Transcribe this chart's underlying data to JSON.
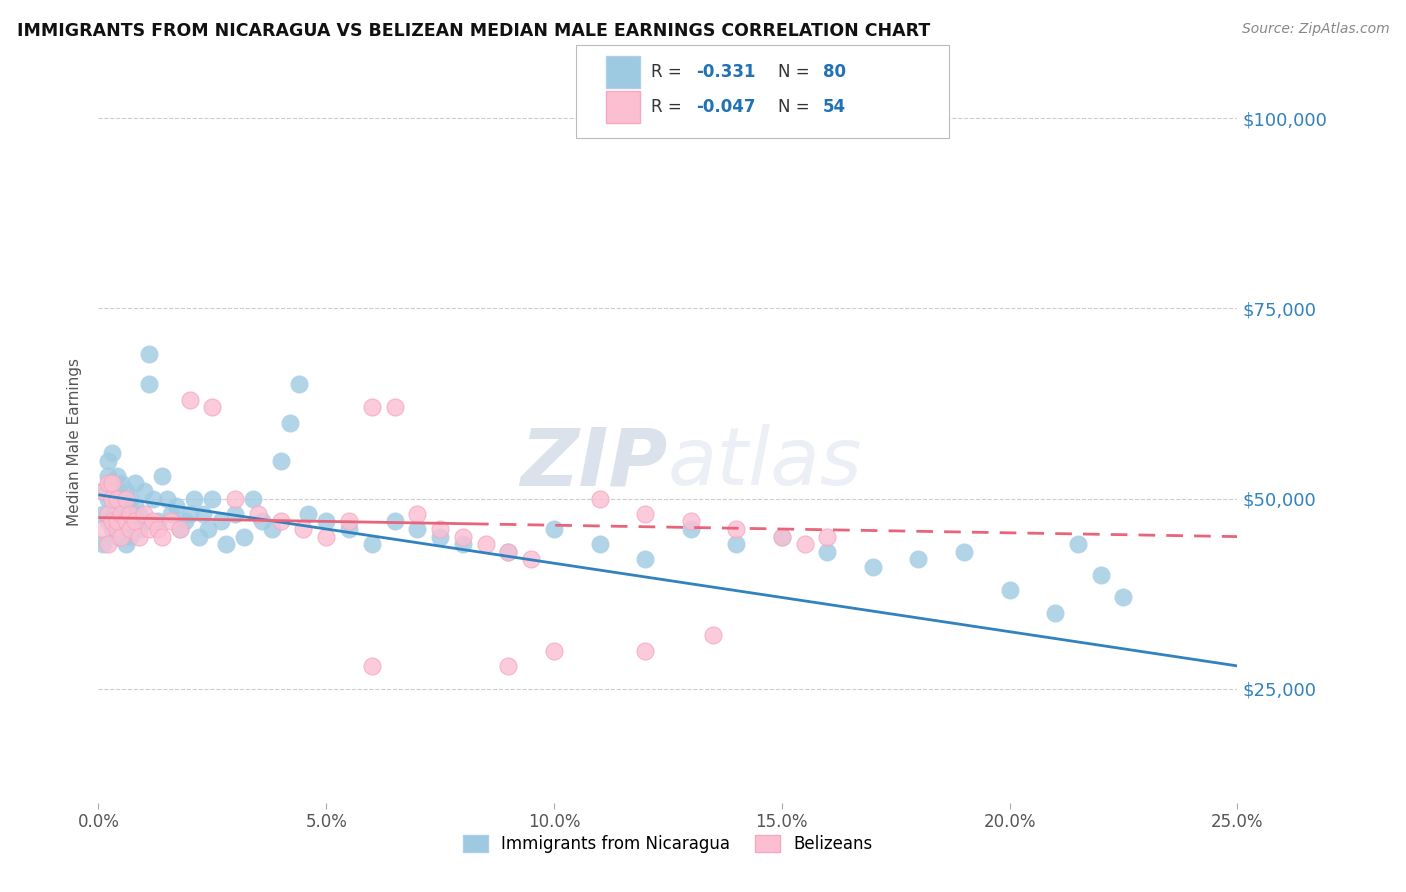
{
  "title": "IMMIGRANTS FROM NICARAGUA VS BELIZEAN MEDIAN MALE EARNINGS CORRELATION CHART",
  "source": "Source: ZipAtlas.com",
  "ylabel": "Median Male Earnings",
  "x_min": 0.0,
  "x_max": 0.25,
  "y_min": 10000,
  "y_max": 105000,
  "y_ticks": [
    25000,
    50000,
    75000,
    100000
  ],
  "y_tick_labels": [
    "$25,000",
    "$50,000",
    "$75,000",
    "$100,000"
  ],
  "x_tick_labels": [
    "0.0%",
    "5.0%",
    "10.0%",
    "15.0%",
    "20.0%",
    "25.0%"
  ],
  "x_ticks": [
    0.0,
    0.05,
    0.1,
    0.15,
    0.2,
    0.25
  ],
  "blue_color": "#9ecae1",
  "pink_color": "#fcbfd2",
  "blue_line_color": "#3182bd",
  "pink_line_color": "#e8647a",
  "watermark_zip": "ZIP",
  "watermark_atlas": "atlas",
  "legend_label1": "Immigrants from Nicaragua",
  "legend_label2": "Belizeans",
  "blue_scatter_x": [
    0.001,
    0.001,
    0.001,
    0.002,
    0.002,
    0.002,
    0.002,
    0.003,
    0.003,
    0.003,
    0.003,
    0.004,
    0.004,
    0.004,
    0.004,
    0.005,
    0.005,
    0.005,
    0.006,
    0.006,
    0.006,
    0.007,
    0.007,
    0.007,
    0.008,
    0.008,
    0.009,
    0.009,
    0.01,
    0.01,
    0.011,
    0.011,
    0.012,
    0.013,
    0.014,
    0.015,
    0.016,
    0.017,
    0.018,
    0.019,
    0.02,
    0.021,
    0.022,
    0.023,
    0.024,
    0.025,
    0.027,
    0.028,
    0.03,
    0.032,
    0.034,
    0.036,
    0.038,
    0.04,
    0.042,
    0.044,
    0.046,
    0.05,
    0.055,
    0.06,
    0.065,
    0.07,
    0.075,
    0.08,
    0.09,
    0.1,
    0.11,
    0.12,
    0.13,
    0.14,
    0.15,
    0.16,
    0.17,
    0.18,
    0.19,
    0.2,
    0.21,
    0.215,
    0.22,
    0.225
  ],
  "blue_scatter_y": [
    48000,
    51000,
    44000,
    50000,
    53000,
    47000,
    55000,
    52000,
    48000,
    56000,
    46000,
    50000,
    47000,
    53000,
    45000,
    52000,
    49000,
    46000,
    51000,
    48000,
    44000,
    50000,
    47000,
    45000,
    52000,
    49000,
    48000,
    46000,
    51000,
    47000,
    65000,
    69000,
    50000,
    47000,
    53000,
    50000,
    48000,
    49000,
    46000,
    47000,
    48000,
    50000,
    45000,
    48000,
    46000,
    50000,
    47000,
    44000,
    48000,
    45000,
    50000,
    47000,
    46000,
    55000,
    60000,
    65000,
    48000,
    47000,
    46000,
    44000,
    47000,
    46000,
    45000,
    44000,
    43000,
    46000,
    44000,
    42000,
    46000,
    44000,
    45000,
    43000,
    41000,
    42000,
    43000,
    38000,
    35000,
    44000,
    40000,
    37000
  ],
  "pink_scatter_x": [
    0.001,
    0.001,
    0.002,
    0.002,
    0.002,
    0.003,
    0.003,
    0.003,
    0.004,
    0.004,
    0.004,
    0.005,
    0.005,
    0.006,
    0.006,
    0.007,
    0.007,
    0.008,
    0.009,
    0.01,
    0.011,
    0.012,
    0.013,
    0.014,
    0.016,
    0.018,
    0.02,
    0.025,
    0.03,
    0.035,
    0.04,
    0.045,
    0.05,
    0.055,
    0.06,
    0.065,
    0.07,
    0.075,
    0.08,
    0.085,
    0.09,
    0.095,
    0.1,
    0.11,
    0.12,
    0.13,
    0.14,
    0.15,
    0.155,
    0.16,
    0.135,
    0.12,
    0.09,
    0.06
  ],
  "pink_scatter_y": [
    51000,
    46000,
    52000,
    48000,
    44000,
    50000,
    47000,
    52000,
    46000,
    50000,
    47000,
    48000,
    45000,
    47000,
    50000,
    46000,
    48000,
    47000,
    45000,
    48000,
    46000,
    47000,
    46000,
    45000,
    47000,
    46000,
    63000,
    62000,
    50000,
    48000,
    47000,
    46000,
    45000,
    47000,
    62000,
    62000,
    48000,
    46000,
    45000,
    44000,
    43000,
    42000,
    30000,
    50000,
    48000,
    47000,
    46000,
    45000,
    44000,
    45000,
    32000,
    30000,
    28000,
    28000
  ],
  "blue_line_x0": 0.0,
  "blue_line_x1": 0.25,
  "blue_line_y0": 50500,
  "blue_line_y1": 28000,
  "pink_line_x0": 0.0,
  "pink_line_x1": 0.25,
  "pink_line_y0": 47500,
  "pink_line_y1": 45000
}
